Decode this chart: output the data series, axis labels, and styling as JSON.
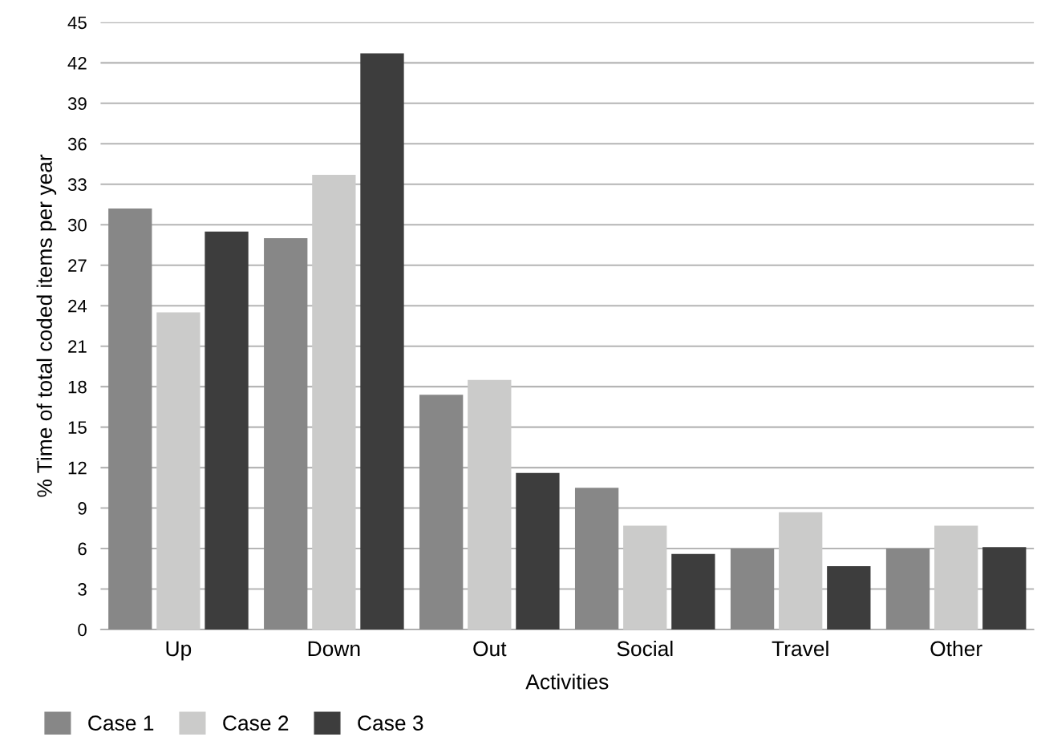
{
  "chart_data": {
    "type": "bar",
    "xlabel": "Activities",
    "ylabel": "% Time of total coded items per year",
    "categories": [
      "Up",
      "Down",
      "Out",
      "Social",
      "Travel",
      "Other"
    ],
    "series": [
      {
        "name": "Case 1",
        "color": "#878787",
        "values": [
          31.2,
          29.0,
          17.4,
          10.5,
          6.0,
          6.0
        ]
      },
      {
        "name": "Case 2",
        "color": "#cbcbca",
        "values": [
          23.5,
          33.7,
          18.5,
          7.7,
          8.7,
          7.7
        ]
      },
      {
        "name": "Case 3",
        "color": "#3d3d3d",
        "values": [
          29.5,
          42.7,
          11.6,
          5.6,
          4.7,
          6.1
        ]
      }
    ],
    "ylim": [
      0,
      45
    ],
    "yticks": [
      0,
      3,
      6,
      9,
      12,
      15,
      18,
      21,
      24,
      27,
      30,
      33,
      36,
      39,
      42,
      45
    ],
    "grid": "y",
    "legend": "bottom left"
  }
}
